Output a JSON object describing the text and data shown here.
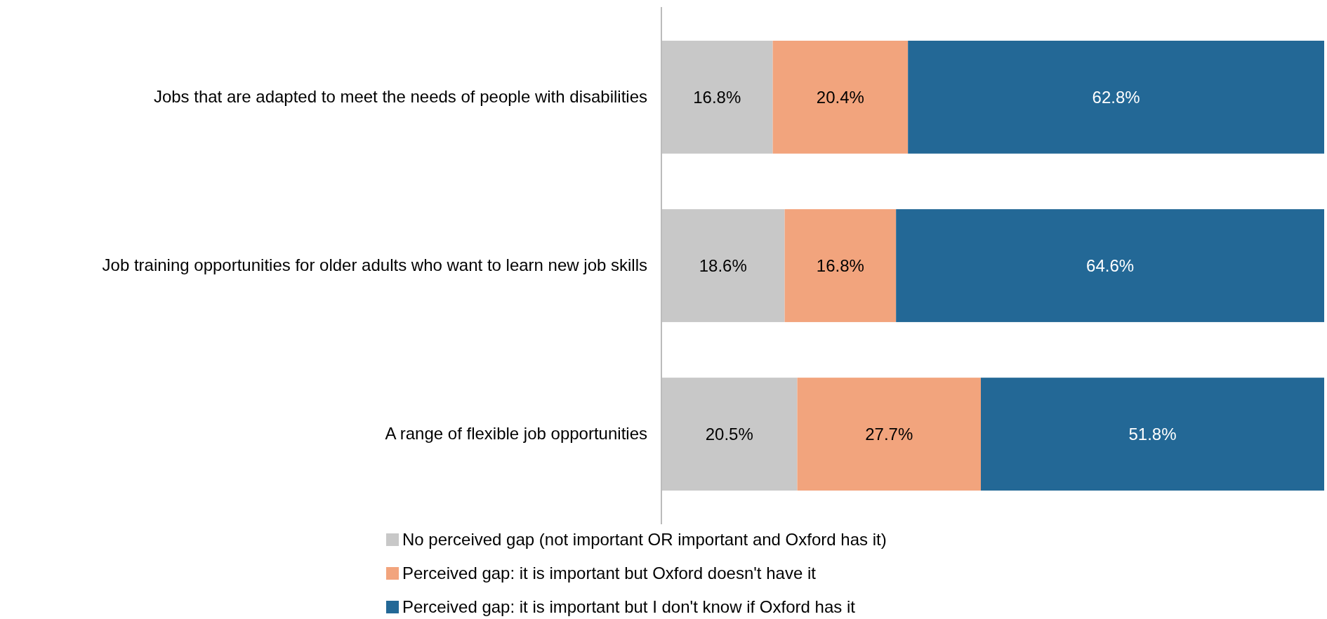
{
  "chart_data": {
    "type": "bar",
    "orientation": "horizontal",
    "stacked": true,
    "legend": "bottom",
    "categories": [
      "Jobs that are adapted to meet the needs of people with disabilities",
      "Job training opportunities for older adults who want to learn new job skills",
      "A range of flexible job opportunities"
    ],
    "series": [
      {
        "name": "No perceived gap (not important OR important and Oxford has it)",
        "color": "#c8c8c8",
        "values": [
          16.8,
          18.6,
          20.5
        ],
        "value_labels": [
          "16.8%",
          "18.6%",
          "20.5%"
        ]
      },
      {
        "name": "Perceived gap: it is important but Oxford doesn't have it",
        "color": "#f2a47d",
        "values": [
          20.4,
          16.8,
          27.7
        ],
        "value_labels": [
          "20.4%",
          "16.8%",
          "27.7%"
        ]
      },
      {
        "name": "Perceived gap: it is important but I don't know if Oxford has it",
        "color": "#236896",
        "values": [
          62.8,
          64.6,
          51.8
        ],
        "value_labels": [
          "62.8%",
          "64.6%",
          "51.8%"
        ]
      }
    ]
  }
}
